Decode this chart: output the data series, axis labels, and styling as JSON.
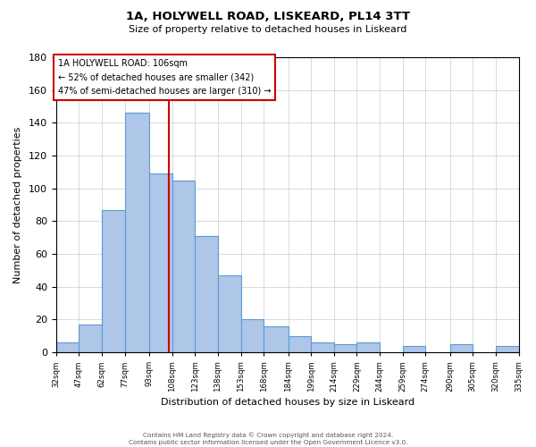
{
  "title": "1A, HOLYWELL ROAD, LISKEARD, PL14 3TT",
  "subtitle": "Size of property relative to detached houses in Liskeard",
  "xlabel": "Distribution of detached houses by size in Liskeard",
  "ylabel": "Number of detached properties",
  "footnote1": "Contains HM Land Registry data © Crown copyright and database right 2024.",
  "footnote2": "Contains public sector information licensed under the Open Government Licence v3.0.",
  "bar_edges": [
    32,
    47,
    62,
    77,
    93,
    108,
    123,
    138,
    153,
    168,
    184,
    199,
    214,
    229,
    244,
    259,
    274,
    290,
    305,
    320,
    335
  ],
  "bar_heights": [
    6,
    17,
    87,
    146,
    109,
    105,
    71,
    47,
    20,
    16,
    10,
    6,
    5,
    6,
    0,
    4,
    0,
    5,
    0,
    4
  ],
  "bar_color": "#AEC6E8",
  "bar_edge_color": "#5B9BD5",
  "tick_labels": [
    "32sqm",
    "47sqm",
    "62sqm",
    "77sqm",
    "93sqm",
    "108sqm",
    "123sqm",
    "138sqm",
    "153sqm",
    "168sqm",
    "184sqm",
    "199sqm",
    "214sqm",
    "229sqm",
    "244sqm",
    "259sqm",
    "274sqm",
    "290sqm",
    "305sqm",
    "320sqm",
    "335sqm"
  ],
  "property_size": 106,
  "vline_color": "#CC0000",
  "annotation_box_color": "#CC0000",
  "annotation_title": "1A HOLYWELL ROAD: 106sqm",
  "annotation_line1": "← 52% of detached houses are smaller (342)",
  "annotation_line2": "47% of semi-detached houses are larger (310) →",
  "ylim": [
    0,
    180
  ],
  "yticks": [
    0,
    20,
    40,
    60,
    80,
    100,
    120,
    140,
    160,
    180
  ],
  "background_color": "#FFFFFF",
  "grid_color": "#CCCCCC"
}
